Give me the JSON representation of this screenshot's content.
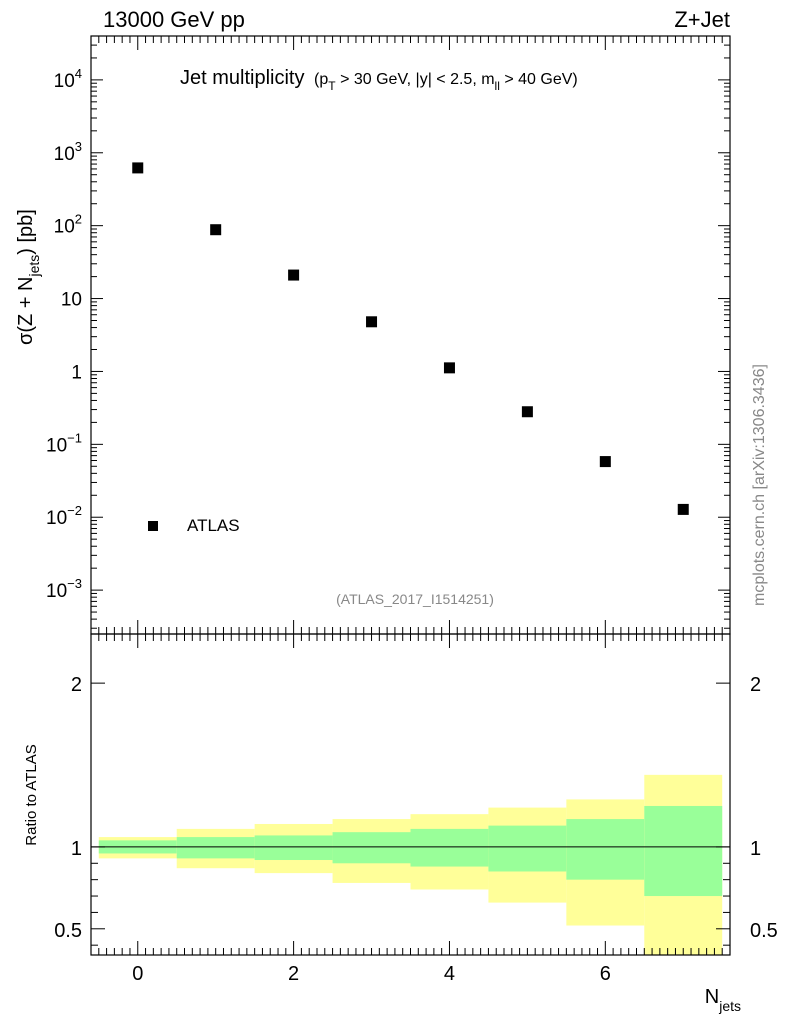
{
  "header": {
    "left": "13000 GeV pp",
    "right": "Z+Jet"
  },
  "side_label": "mcplots.cern.ch [arXiv:1306.3436]",
  "analysis_id": "(ATLAS_2017_I1514251)",
  "chart_data": [
    {
      "type": "scatter",
      "title": "Jet multiplicity",
      "title_cuts": {
        "pt_main": "(p",
        "pt_sub": "T",
        "middle": " > 30 GeV, |y| < 2.5, m",
        "m_sub": "ll",
        "tail": " > 40 GeV)"
      },
      "ylabel": {
        "main": "σ(Z + N",
        "sub": "jets",
        "tail": ") [pb]"
      },
      "yscale": "log",
      "ylim": [
        0.00025,
        40000
      ],
      "xlim": [
        -0.6,
        7.6
      ],
      "y_ticks": [
        {
          "value": 0.001,
          "base": "10",
          "exp": "−3"
        },
        {
          "value": 0.01,
          "base": "10",
          "exp": "−2"
        },
        {
          "value": 0.1,
          "base": "10",
          "exp": "−1"
        },
        {
          "value": 1,
          "base": "1",
          "exp": ""
        },
        {
          "value": 10,
          "base": "10",
          "exp": ""
        },
        {
          "value": 100,
          "base": "10",
          "exp": "2"
        },
        {
          "value": 1000,
          "base": "10",
          "exp": "3"
        },
        {
          "value": 10000,
          "base": "10",
          "exp": "4"
        }
      ],
      "series": [
        {
          "name": "ATLAS",
          "x": [
            0,
            1,
            2,
            3,
            4,
            5,
            6,
            7
          ],
          "y": [
            620,
            88,
            21,
            4.8,
            1.12,
            0.28,
            0.058,
            0.0128
          ]
        }
      ],
      "legend": {
        "entries": [
          "ATLAS"
        ],
        "position": "bottom-left"
      }
    },
    {
      "type": "area",
      "ylabel": "Ratio to ATLAS",
      "xlabel": {
        "main": "N",
        "sub": "jets"
      },
      "ylim": [
        0.34,
        2.3
      ],
      "xlim": [
        -0.6,
        7.6
      ],
      "x_ticks": [
        "0",
        "2",
        "4",
        "6"
      ],
      "y_ticks": [
        "0.5",
        "1",
        "2"
      ],
      "reference_line": 1,
      "bins": [
        {
          "lo": -0.5,
          "hi": 0.5,
          "inner": [
            0.96,
            1.04
          ],
          "outer": [
            0.93,
            1.06
          ]
        },
        {
          "lo": 0.5,
          "hi": 1.5,
          "inner": [
            0.93,
            1.06
          ],
          "outer": [
            0.87,
            1.11
          ]
        },
        {
          "lo": 1.5,
          "hi": 2.5,
          "inner": [
            0.92,
            1.07
          ],
          "outer": [
            0.84,
            1.14
          ]
        },
        {
          "lo": 2.5,
          "hi": 3.5,
          "inner": [
            0.9,
            1.09
          ],
          "outer": [
            0.78,
            1.17
          ]
        },
        {
          "lo": 3.5,
          "hi": 4.5,
          "inner": [
            0.88,
            1.11
          ],
          "outer": [
            0.74,
            1.2
          ]
        },
        {
          "lo": 4.5,
          "hi": 5.5,
          "inner": [
            0.85,
            1.13
          ],
          "outer": [
            0.66,
            1.24
          ]
        },
        {
          "lo": 5.5,
          "hi": 6.5,
          "inner": [
            0.8,
            1.17
          ],
          "outer": [
            0.52,
            1.29
          ]
        },
        {
          "lo": 6.5,
          "hi": 7.5,
          "inner": [
            0.7,
            1.25
          ],
          "outer": [
            0.34,
            1.44
          ]
        }
      ],
      "colors": {
        "inner": "#99ff99",
        "outer": "#ffff99"
      }
    }
  ]
}
